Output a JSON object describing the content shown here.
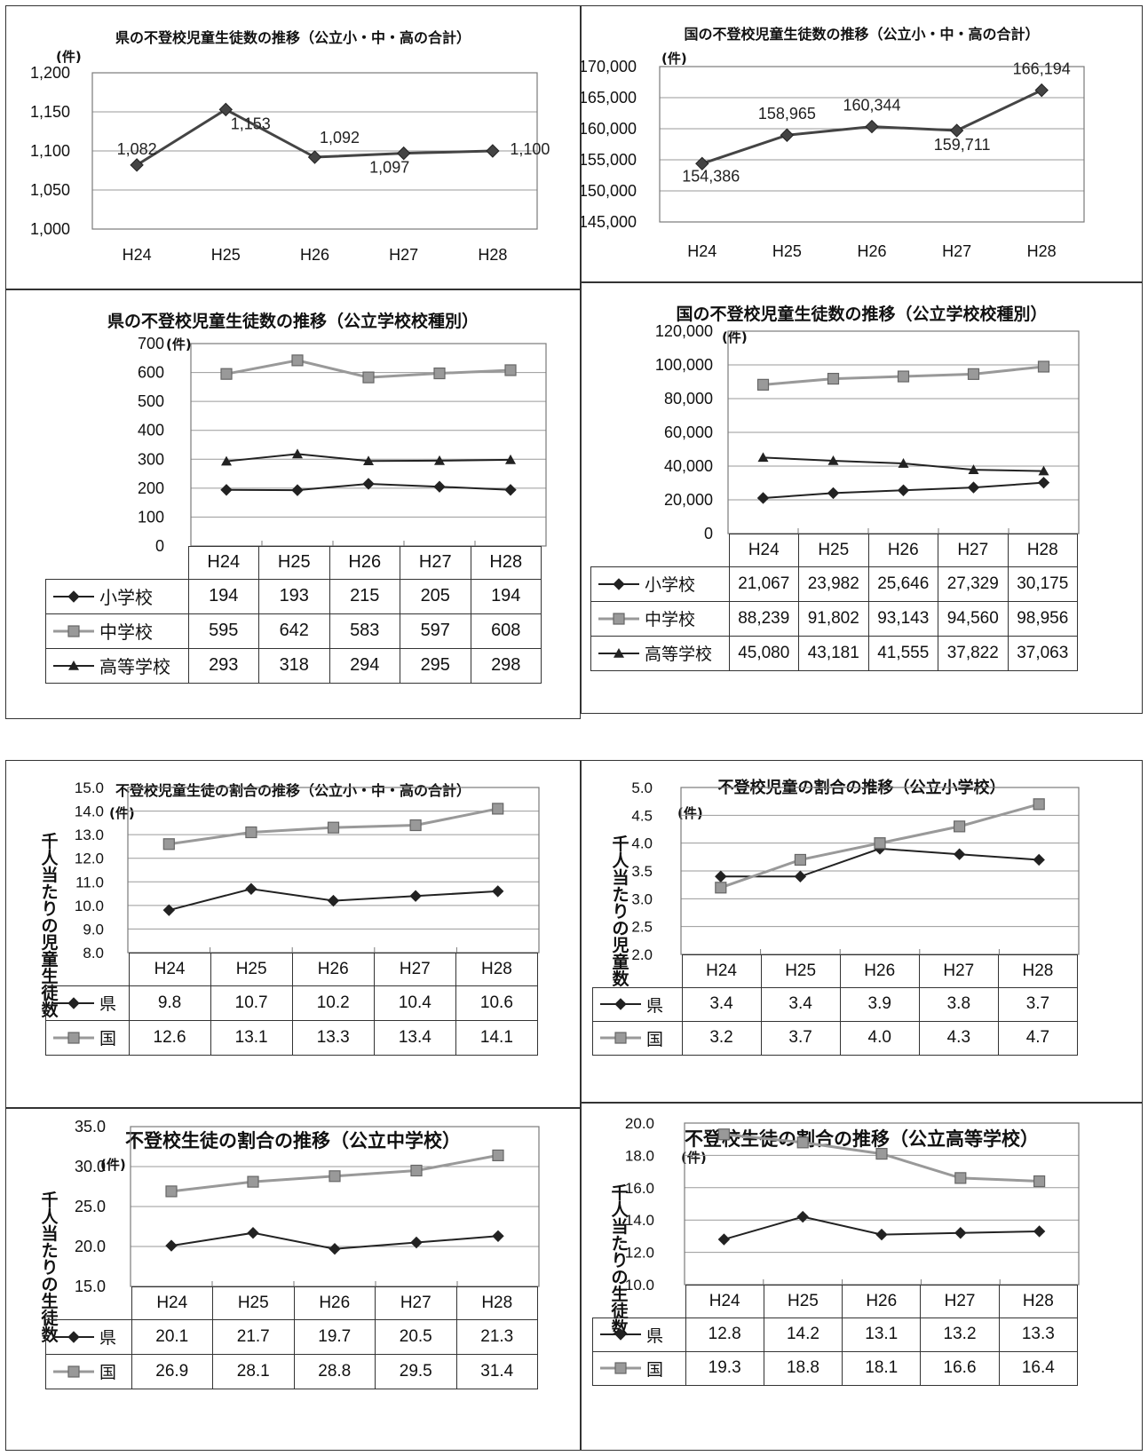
{
  "charts": {
    "c1": {
      "title": "県の不登校児童生徒数の推移（公立小・中・高の合計）",
      "unit": "(件)",
      "chart_data": {
        "type": "line",
        "categories": [
          "H24",
          "H25",
          "H26",
          "H27",
          "H28"
        ],
        "series": [
          {
            "values": [
              1082,
              1153,
              1092,
              1097,
              1100
            ],
            "color": "#444444",
            "marker": "diamond"
          }
        ],
        "ylim": [
          1000,
          1200
        ],
        "yticks": [
          "1,000",
          "1,050",
          "1,100",
          "1,150",
          "1,200"
        ],
        "data_labels": [
          "1,082",
          "1,153",
          "1,092",
          "1,097",
          "1,100"
        ],
        "grid": true
      }
    },
    "c2": {
      "title": "国の不登校児童生徒数の推移（公立小・中・高の合計）",
      "unit": "(件)",
      "chart_data": {
        "type": "line",
        "categories": [
          "H24",
          "H25",
          "H26",
          "H27",
          "H28"
        ],
        "series": [
          {
            "values": [
              154386,
              158965,
              160344,
              159711,
              166194
            ],
            "color": "#444444",
            "marker": "diamond"
          }
        ],
        "ylim": [
          145000,
          170000
        ],
        "yticks": [
          "145,000",
          "150,000",
          "155,000",
          "160,000",
          "165,000",
          "170,000"
        ],
        "data_labels": [
          "154,386",
          "158,965",
          "160,344",
          "159,711",
          "166,194"
        ],
        "grid": true
      }
    },
    "c3": {
      "title": "県の不登校児童生徒数の推移（公立学校校種別）",
      "unit": "(件)",
      "chart_data": {
        "type": "line",
        "categories": [
          "H24",
          "H25",
          "H26",
          "H27",
          "H28"
        ],
        "series": [
          {
            "name": "小学校",
            "values": [
              194,
              193,
              215,
              205,
              194
            ],
            "display": [
              "194",
              "193",
              "215",
              "205",
              "194"
            ],
            "color": "#222222",
            "marker": "diamond"
          },
          {
            "name": "中学校",
            "values": [
              595,
              642,
              583,
              597,
              608
            ],
            "display": [
              "595",
              "642",
              "583",
              "597",
              "608"
            ],
            "color": "#999999",
            "marker": "square"
          },
          {
            "name": "高等学校",
            "values": [
              293,
              318,
              294,
              295,
              298
            ],
            "display": [
              "293",
              "318",
              "294",
              "295",
              "298"
            ],
            "color": "#222222",
            "marker": "triangle"
          }
        ],
        "ylim": [
          0,
          700
        ],
        "yticks": [
          "0",
          "100",
          "200",
          "300",
          "400",
          "500",
          "600",
          "700"
        ],
        "grid": true
      }
    },
    "c4": {
      "title": "国の不登校児童生徒数の推移（公立学校校種別）",
      "unit": "(件)",
      "chart_data": {
        "type": "line",
        "categories": [
          "H24",
          "H25",
          "H26",
          "H27",
          "H28"
        ],
        "series": [
          {
            "name": "小学校",
            "values": [
              21067,
              23982,
              25646,
              27329,
              30175
            ],
            "display": [
              "21,067",
              "23,982",
              "25,646",
              "27,329",
              "30,175"
            ],
            "color": "#222222",
            "marker": "diamond"
          },
          {
            "name": "中学校",
            "values": [
              88239,
              91802,
              93143,
              94560,
              98956
            ],
            "display": [
              "88,239",
              "91,802",
              "93,143",
              "94,560",
              "98,956"
            ],
            "color": "#999999",
            "marker": "square"
          },
          {
            "name": "高等学校",
            "values": [
              45080,
              43181,
              41555,
              37822,
              37063
            ],
            "display": [
              "45,080",
              "43,181",
              "41,555",
              "37,822",
              "37,063"
            ],
            "color": "#222222",
            "marker": "triangle"
          }
        ],
        "ylim": [
          0,
          120000
        ],
        "yticks": [
          "0",
          "20,000",
          "40,000",
          "60,000",
          "80,000",
          "100,000",
          "120,000"
        ],
        "grid": true
      }
    },
    "c5": {
      "title": "不登校児童生徒の割合の推移（公立小・中・高の合計）",
      "unit": "(件)",
      "ylabel": "千人当たりの児童生徒数",
      "chart_data": {
        "type": "line",
        "categories": [
          "H24",
          "H25",
          "H26",
          "H27",
          "H28"
        ],
        "series": [
          {
            "name": "県",
            "values": [
              9.8,
              10.7,
              10.2,
              10.4,
              10.6
            ],
            "display": [
              "9.8",
              "10.7",
              "10.2",
              "10.4",
              "10.6"
            ],
            "color": "#222222",
            "marker": "diamond"
          },
          {
            "name": "国",
            "values": [
              12.6,
              13.1,
              13.3,
              13.4,
              14.1
            ],
            "display": [
              "12.6",
              "13.1",
              "13.3",
              "13.4",
              "14.1"
            ],
            "color": "#999999",
            "marker": "square"
          }
        ],
        "ylim": [
          8,
          15
        ],
        "yticks": [
          "8.0",
          "9.0",
          "10.0",
          "11.0",
          "12.0",
          "13.0",
          "14.0",
          "15.0"
        ],
        "grid": true
      }
    },
    "c6": {
      "title": "不登校児童の割合の推移（公立小学校）",
      "unit": "(件)",
      "ylabel": "千人当たりの児童数",
      "chart_data": {
        "type": "line",
        "categories": [
          "H24",
          "H25",
          "H26",
          "H27",
          "H28"
        ],
        "series": [
          {
            "name": "県",
            "values": [
              3.4,
              3.4,
              3.9,
              3.8,
              3.7
            ],
            "display": [
              "3.4",
              "3.4",
              "3.9",
              "3.8",
              "3.7"
            ],
            "color": "#222222",
            "marker": "diamond"
          },
          {
            "name": "国",
            "values": [
              3.2,
              3.7,
              4.0,
              4.3,
              4.7
            ],
            "display": [
              "3.2",
              "3.7",
              "4.0",
              "4.3",
              "4.7"
            ],
            "color": "#999999",
            "marker": "square"
          }
        ],
        "ylim": [
          2,
          5
        ],
        "yticks": [
          "2.0",
          "2.5",
          "3.0",
          "3.5",
          "4.0",
          "4.5",
          "5.0"
        ],
        "grid": true
      }
    },
    "c7": {
      "title": "不登校生徒の割合の推移（公立中学校）",
      "unit": "(件)",
      "ylabel": "千人当たりの生徒数",
      "chart_data": {
        "type": "line",
        "categories": [
          "H24",
          "H25",
          "H26",
          "H27",
          "H28"
        ],
        "series": [
          {
            "name": "県",
            "values": [
              20.1,
              21.7,
              19.7,
              20.5,
              21.3
            ],
            "display": [
              "20.1",
              "21.7",
              "19.7",
              "20.5",
              "21.3"
            ],
            "color": "#222222",
            "marker": "diamond"
          },
          {
            "name": "国",
            "values": [
              26.9,
              28.1,
              28.8,
              29.5,
              31.4
            ],
            "display": [
              "26.9",
              "28.1",
              "28.8",
              "29.5",
              "31.4"
            ],
            "color": "#999999",
            "marker": "square"
          }
        ],
        "ylim": [
          15,
          35
        ],
        "yticks": [
          "15.0",
          "20.0",
          "25.0",
          "30.0",
          "35.0"
        ],
        "grid": true
      }
    },
    "c8": {
      "title": "不登校生徒の割合の推移（公立高等学校）",
      "unit": "(件)",
      "ylabel": "千人当たりの生徒数",
      "chart_data": {
        "type": "line",
        "categories": [
          "H24",
          "H25",
          "H26",
          "H27",
          "H28"
        ],
        "series": [
          {
            "name": "県",
            "values": [
              12.8,
              14.2,
              13.1,
              13.2,
              13.3
            ],
            "display": [
              "12.8",
              "14.2",
              "13.1",
              "13.2",
              "13.3"
            ],
            "color": "#222222",
            "marker": "diamond"
          },
          {
            "name": "国",
            "values": [
              19.3,
              18.8,
              18.1,
              16.6,
              16.4
            ],
            "display": [
              "19.3",
              "18.8",
              "18.1",
              "16.6",
              "16.4"
            ],
            "color": "#999999",
            "marker": "square"
          }
        ],
        "ylim": [
          10,
          20
        ],
        "yticks": [
          "10.0",
          "12.0",
          "14.0",
          "16.0",
          "18.0",
          "20.0"
        ],
        "grid": true
      }
    }
  }
}
